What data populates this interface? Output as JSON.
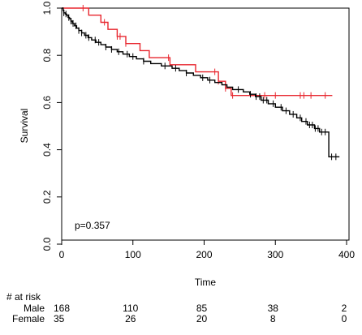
{
  "chart_data": {
    "type": "line",
    "subtype": "kaplan-meier survival curve",
    "title": "",
    "xlabel": "Time",
    "ylabel": "Survival",
    "xlim": [
      0,
      400
    ],
    "ylim": [
      0,
      1
    ],
    "x_ticks": [
      0,
      100,
      200,
      300,
      400
    ],
    "y_ticks": [
      0.0,
      0.2,
      0.4,
      0.6,
      0.8,
      1.0
    ],
    "x_tick_labels": [
      "0",
      "100",
      "200",
      "300",
      "400"
    ],
    "y_tick_labels": [
      "0.0",
      "0.2",
      "0.4",
      "0.6",
      "0.8",
      "1.0"
    ],
    "grid": false,
    "annotation": "p=0.357",
    "series": [
      {
        "name": "Male",
        "color": "#000000",
        "steps": [
          [
            0,
            1.0
          ],
          [
            2,
            0.99
          ],
          [
            3,
            0.98
          ],
          [
            5,
            0.975
          ],
          [
            7,
            0.97
          ],
          [
            9,
            0.96
          ],
          [
            11,
            0.955
          ],
          [
            13,
            0.945
          ],
          [
            15,
            0.935
          ],
          [
            18,
            0.925
          ],
          [
            21,
            0.915
          ],
          [
            24,
            0.905
          ],
          [
            28,
            0.895
          ],
          [
            32,
            0.885
          ],
          [
            37,
            0.875
          ],
          [
            42,
            0.865
          ],
          [
            48,
            0.855
          ],
          [
            55,
            0.845
          ],
          [
            62,
            0.835
          ],
          [
            70,
            0.825
          ],
          [
            78,
            0.815
          ],
          [
            86,
            0.805
          ],
          [
            95,
            0.795
          ],
          [
            105,
            0.785
          ],
          [
            115,
            0.775
          ],
          [
            125,
            0.765
          ],
          [
            140,
            0.755
          ],
          [
            155,
            0.745
          ],
          [
            165,
            0.735
          ],
          [
            175,
            0.725
          ],
          [
            185,
            0.715
          ],
          [
            195,
            0.705
          ],
          [
            205,
            0.695
          ],
          [
            215,
            0.685
          ],
          [
            225,
            0.675
          ],
          [
            232,
            0.665
          ],
          [
            240,
            0.655
          ],
          [
            255,
            0.645
          ],
          [
            264,
            0.635
          ],
          [
            272,
            0.625
          ],
          [
            280,
            0.61
          ],
          [
            290,
            0.595
          ],
          [
            300,
            0.58
          ],
          [
            310,
            0.565
          ],
          [
            320,
            0.55
          ],
          [
            330,
            0.535
          ],
          [
            337,
            0.52
          ],
          [
            345,
            0.505
          ],
          [
            355,
            0.49
          ],
          [
            362,
            0.475
          ],
          [
            375,
            0.37
          ]
        ],
        "end_x": 390,
        "censor_times": [
          3,
          6,
          10,
          13,
          16,
          20,
          24,
          28,
          34,
          38,
          47,
          52,
          62,
          70,
          80,
          92,
          100,
          115,
          145,
          160,
          175,
          198,
          208,
          248,
          265,
          273,
          278,
          283,
          288,
          297,
          308,
          315,
          325,
          335,
          343,
          348,
          352,
          356,
          360,
          365,
          370,
          379,
          385
        ]
      },
      {
        "name": "Female",
        "color": "#e8262e",
        "steps": [
          [
            0,
            1.0
          ],
          [
            38,
            0.97
          ],
          [
            55,
            0.94
          ],
          [
            65,
            0.91
          ],
          [
            78,
            0.88
          ],
          [
            90,
            0.85
          ],
          [
            110,
            0.82
          ],
          [
            123,
            0.79
          ],
          [
            152,
            0.76
          ],
          [
            188,
            0.73
          ],
          [
            220,
            0.69
          ],
          [
            230,
            0.66
          ],
          [
            238,
            0.63
          ]
        ],
        "end_x": 380,
        "censor_times": [
          30,
          60,
          78,
          82,
          90,
          150,
          215,
          220,
          230,
          240,
          285,
          300,
          335,
          340,
          350,
          370
        ]
      }
    ],
    "risk_table": {
      "header": "# at risk",
      "times": [
        0,
        100,
        200,
        300,
        400
      ],
      "rows": [
        {
          "label": "Male",
          "counts": [
            "168",
            "110",
            "85",
            "38",
            "2"
          ]
        },
        {
          "label": "Female",
          "counts": [
            "35",
            "26",
            "20",
            "8",
            "0"
          ]
        }
      ]
    }
  }
}
